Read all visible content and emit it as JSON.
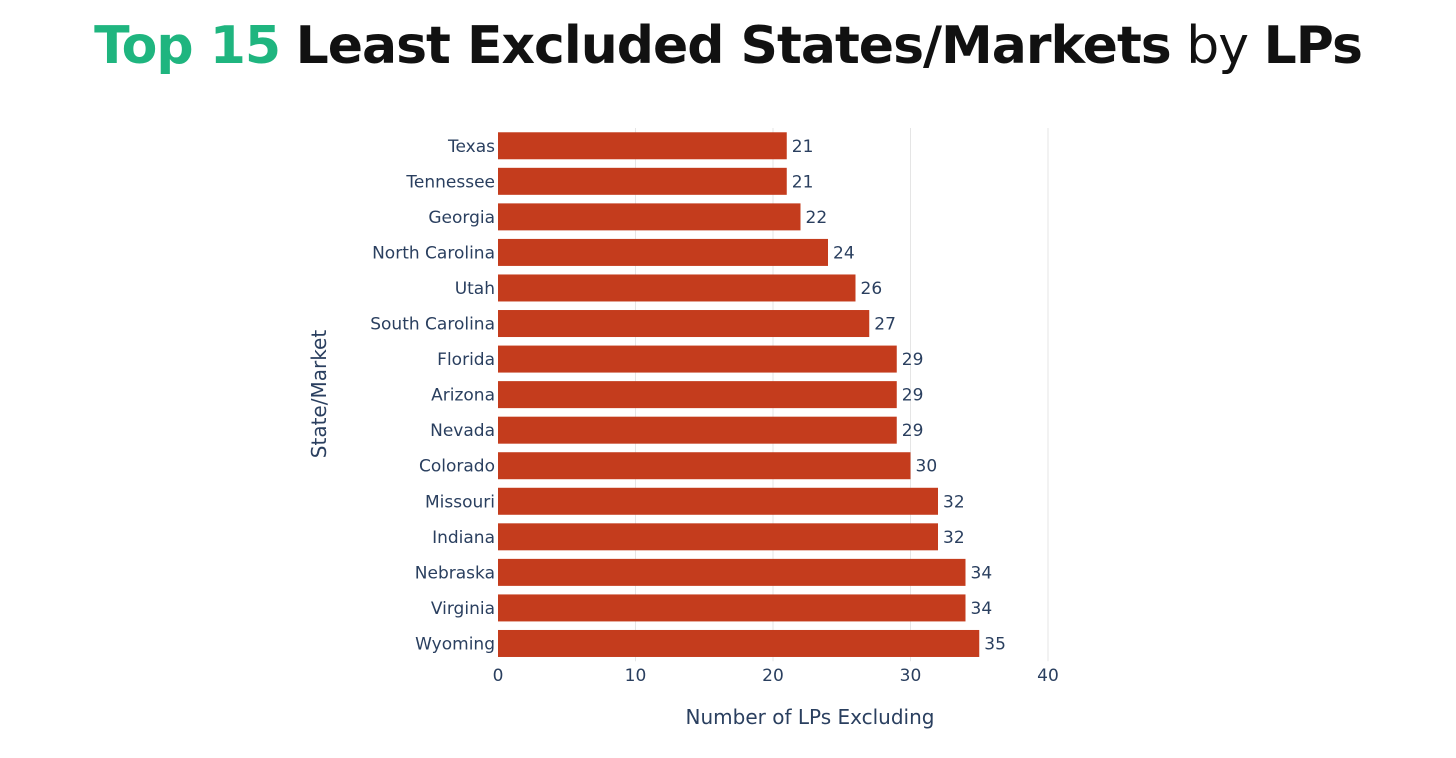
{
  "title": {
    "highlight": "Top 15",
    "main": "Least Excluded States/Markets",
    "connector": "by",
    "tail": "LPs"
  },
  "colors": {
    "accent": "#1fb57f",
    "bar": "#c43c1d",
    "axis_text": "#2a3f5f",
    "grid": "#e5e5e5"
  },
  "chart_data": {
    "type": "bar",
    "orientation": "horizontal",
    "categories": [
      "Texas",
      "Tennessee",
      "Georgia",
      "North Carolina",
      "Utah",
      "South Carolina",
      "Florida",
      "Arizona",
      "Nevada",
      "Colorado",
      "Missouri",
      "Indiana",
      "Nebraska",
      "Virginia",
      "Wyoming"
    ],
    "values": [
      21,
      21,
      22,
      24,
      26,
      27,
      29,
      29,
      29,
      30,
      32,
      32,
      34,
      34,
      35
    ],
    "xlabel": "Number of LPs Excluding",
    "ylabel": "State/Market",
    "xlim": [
      0,
      40
    ],
    "xticks": [
      0,
      10,
      20,
      30,
      40
    ],
    "grid": true,
    "data_labels": true
  }
}
